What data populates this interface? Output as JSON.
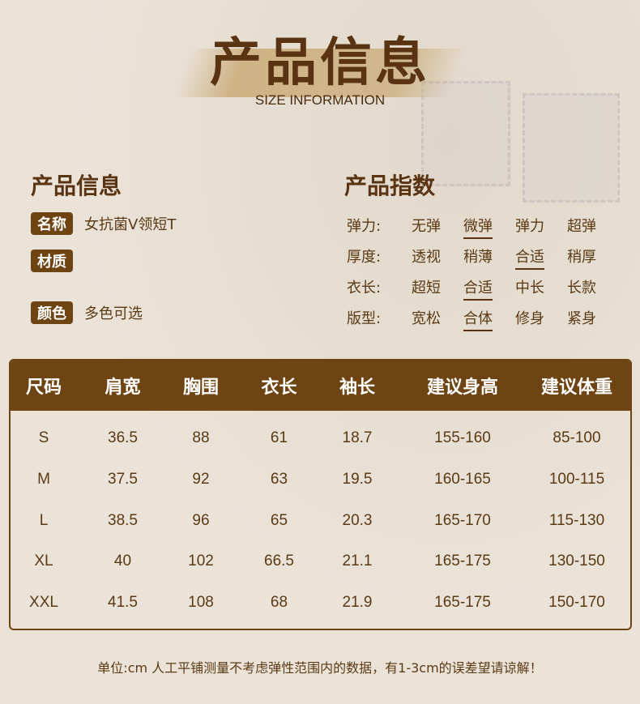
{
  "header": {
    "title": "产品信息",
    "subtitle": "SIZE INFORMATION"
  },
  "info": {
    "heading": "产品信息",
    "rows": [
      {
        "tag": "名称",
        "value": "女抗菌V领短T"
      },
      {
        "tag": "材质",
        "value": ""
      },
      {
        "tag": "颜色",
        "value": "多色可选"
      }
    ]
  },
  "index": {
    "heading": "产品指数",
    "rows": [
      {
        "label": "弹力:",
        "options": [
          "无弹",
          "微弹",
          "弹力",
          "超弹"
        ],
        "selected": 1
      },
      {
        "label": "厚度:",
        "options": [
          "透视",
          "稍薄",
          "合适",
          "稍厚"
        ],
        "selected": 2
      },
      {
        "label": "衣长:",
        "options": [
          "超短",
          "合适",
          "中长",
          "长款"
        ],
        "selected": 1
      },
      {
        "label": "版型:",
        "options": [
          "宽松",
          "合体",
          "修身",
          "紧身"
        ],
        "selected": 1
      }
    ]
  },
  "size_table": {
    "headers": [
      "尺码",
      "肩宽",
      "胸围",
      "衣长",
      "袖长",
      "建议身高",
      "建议体重"
    ],
    "rows": [
      [
        "S",
        "36.5",
        "88",
        "61",
        "18.7",
        "155-160",
        "85-100"
      ],
      [
        "M",
        "37.5",
        "92",
        "63",
        "19.5",
        "160-165",
        "100-115"
      ],
      [
        "L",
        "38.5",
        "96",
        "65",
        "20.3",
        "165-170",
        "115-130"
      ],
      [
        "XL",
        "40",
        "102",
        "66.5",
        "21.1",
        "165-175",
        "130-150"
      ],
      [
        "XXL",
        "41.5",
        "108",
        "68",
        "21.9",
        "165-175",
        "150-170"
      ]
    ]
  },
  "footer": "单位:cm 人工平铺测量不考虑弹性范围内的数据，有1-3cm的误差望请谅解！",
  "colors": {
    "brown": "#6e4412",
    "background": "#ebe3d8"
  }
}
